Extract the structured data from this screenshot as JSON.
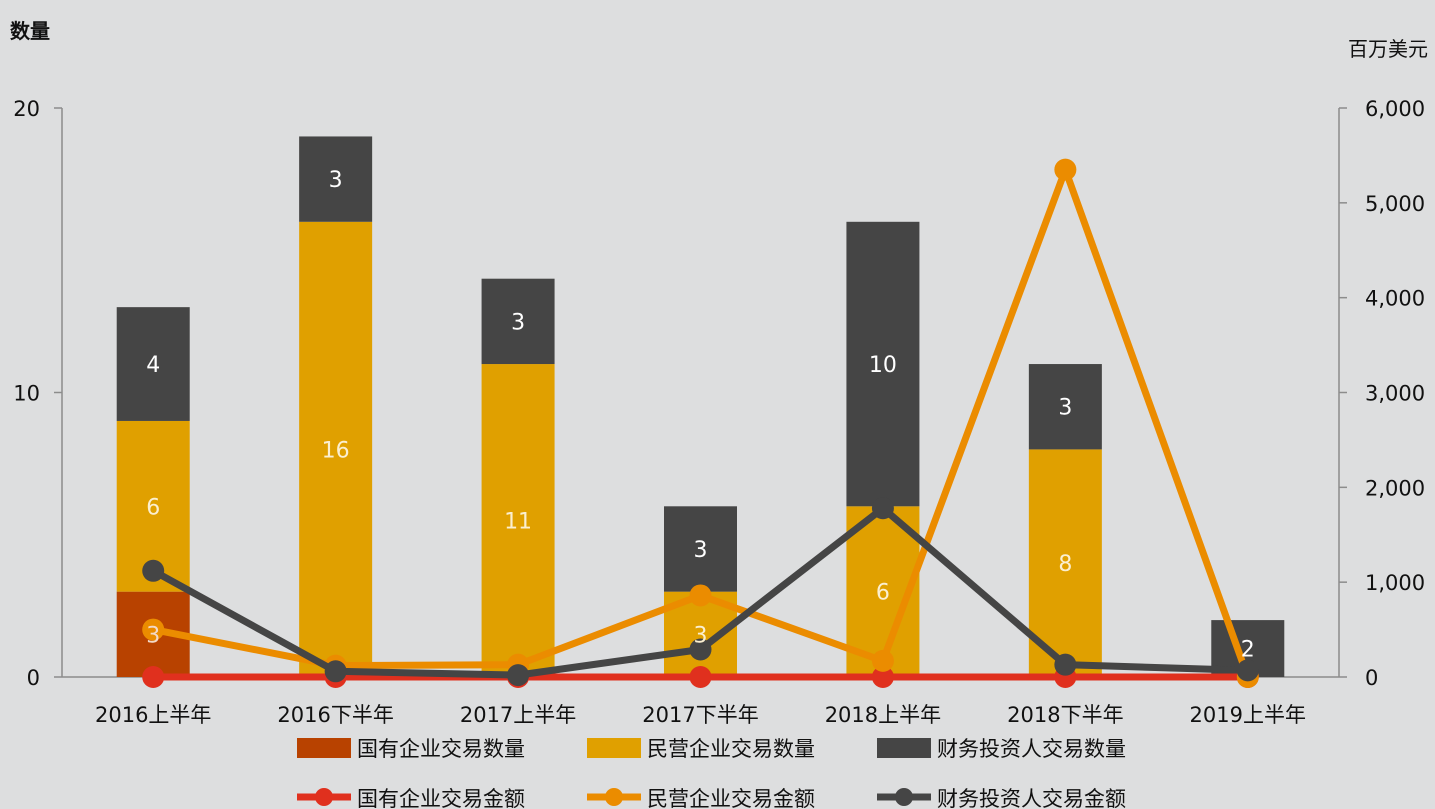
{
  "chart_data": {
    "type": "bar",
    "left_axis_title": "数量",
    "right_axis_title": "百万美元",
    "categories": [
      "2016上半年",
      "2016下半年",
      "2017上半年",
      "2017下半年",
      "2018上半年",
      "2018下半年",
      "2019上半年"
    ],
    "left_axis": {
      "ylim": [
        0,
        20
      ],
      "ticks": [
        "0",
        "10",
        "20"
      ],
      "tick_values": [
        0,
        10,
        20
      ]
    },
    "right_axis": {
      "ylim": [
        0,
        6000
      ],
      "ticks": [
        "0",
        "1,000",
        "2,000",
        "3,000",
        "4,000",
        "5,000",
        "6,000"
      ],
      "tick_values": [
        0,
        1000,
        2000,
        3000,
        4000,
        5000,
        6000
      ]
    },
    "bar_series": [
      {
        "name": "国有企业交易数量",
        "color": "#b84200",
        "label_color": "#f2d9c8",
        "values": [
          3,
          0,
          0,
          0,
          0,
          0,
          0
        ],
        "labels": [
          "3",
          "",
          "",
          "",
          "",
          "",
          ""
        ]
      },
      {
        "name": "民营企业交易数量",
        "color": "#e0a000",
        "label_color": "#fbefd0",
        "values": [
          6,
          16,
          11,
          3,
          6,
          8,
          0
        ],
        "labels": [
          "6",
          "16",
          "11",
          "3",
          "6",
          "8",
          ""
        ]
      },
      {
        "name": "财务投资人交易数量",
        "color": "#454545",
        "label_color": "#ffffff",
        "values": [
          4,
          3,
          3,
          3,
          10,
          3,
          2
        ],
        "labels": [
          "4",
          "3",
          "3",
          "3",
          "10",
          "3",
          "2"
        ]
      }
    ],
    "line_series": [
      {
        "name": "国有企业交易金额",
        "color": "#e0301e",
        "values": [
          0,
          0,
          0,
          0,
          0,
          0,
          0
        ]
      },
      {
        "name": "民营企业交易金额",
        "color": "#eb8c00",
        "values": [
          500,
          120,
          130,
          860,
          170,
          5350,
          0
        ]
      },
      {
        "name": "财务投资人交易金额",
        "color": "#454545",
        "values": [
          1120,
          60,
          20,
          290,
          1780,
          130,
          70
        ]
      }
    ],
    "legend_position": "bottom",
    "grid": false
  }
}
